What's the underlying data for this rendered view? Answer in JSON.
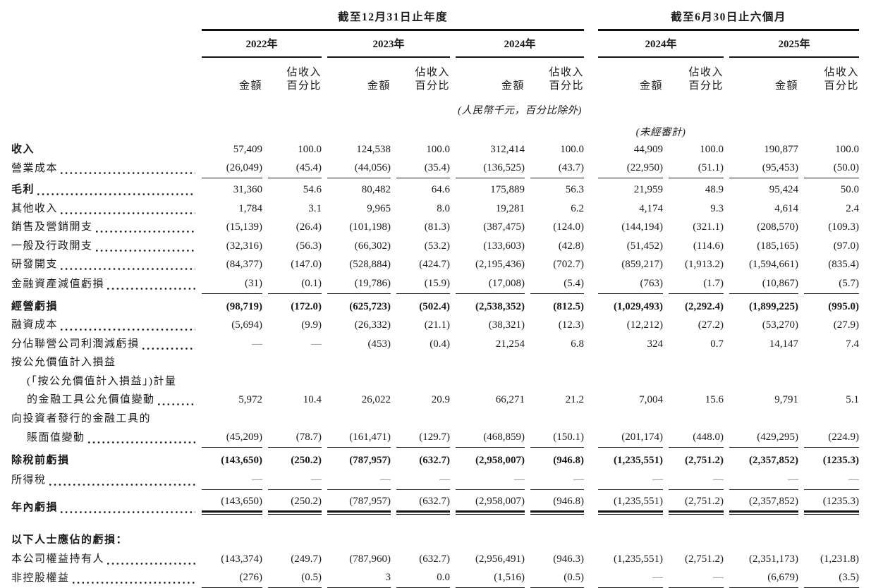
{
  "header": {
    "group_left": "截至12月31日止年度",
    "group_right": "截至6月30日止六個月",
    "years_left": [
      "2022年",
      "2023年",
      "2024年"
    ],
    "years_right": [
      "2024年",
      "2025年"
    ],
    "col_amount": "金額",
    "col_pct_line1": "佔收入",
    "col_pct_line2": "百分比",
    "note_currency": "(人民幣千元，百分比除外)",
    "note_unaudited": "(未經審計)"
  },
  "rows": [
    {
      "label": "收入",
      "bold": true,
      "leader": false,
      "values": [
        "57,409",
        "100.0",
        "124,538",
        "100.0",
        "312,414",
        "100.0",
        "44,909",
        "100.0",
        "190,877",
        "100.0"
      ]
    },
    {
      "label": "營業成本",
      "leader": true,
      "rule_after": "single",
      "values": [
        "(26,049)",
        "(45.4)",
        "(44,056)",
        "(35.4)",
        "(136,525)",
        "(43.7)",
        "(22,950)",
        "(51.1)",
        "(95,453)",
        "(50.0)"
      ]
    },
    {
      "label": "毛利",
      "bold": true,
      "leader": true,
      "gap": "s",
      "values": [
        "31,360",
        "54.6",
        "80,482",
        "64.6",
        "175,889",
        "56.3",
        "21,959",
        "48.9",
        "95,424",
        "50.0"
      ]
    },
    {
      "label": "其他收入",
      "leader": true,
      "values": [
        "1,784",
        "3.1",
        "9,965",
        "8.0",
        "19,281",
        "6.2",
        "4,174",
        "9.3",
        "4,614",
        "2.4"
      ]
    },
    {
      "label": "銷售及營銷開支",
      "leader": true,
      "values": [
        "(15,139)",
        "(26.4)",
        "(101,198)",
        "(81.3)",
        "(387,475)",
        "(124.0)",
        "(144,194)",
        "(321.1)",
        "(208,570)",
        "(109.3)"
      ]
    },
    {
      "label": "一般及行政開支",
      "leader": true,
      "values": [
        "(32,316)",
        "(56.3)",
        "(66,302)",
        "(53.2)",
        "(133,603)",
        "(42.8)",
        "(51,452)",
        "(114.6)",
        "(185,165)",
        "(97.0)"
      ]
    },
    {
      "label": "研發開支",
      "leader": true,
      "values": [
        "(84,377)",
        "(147.0)",
        "(528,884)",
        "(424.7)",
        "(2,195,436)",
        "(702.7)",
        "(859,217)",
        "(1,913.2)",
        "(1,594,661)",
        "(835.4)"
      ]
    },
    {
      "label": "金融資產減值虧損",
      "leader": true,
      "rule_after": "single",
      "values": [
        "(31)",
        "(0.1)",
        "(19,786)",
        "(15.9)",
        "(17,008)",
        "(5.4)",
        "(763)",
        "(1.7)",
        "(10,867)",
        "(5.7)"
      ]
    },
    {
      "label": "經營虧損",
      "bold": true,
      "bold_values": true,
      "gap": "m",
      "values": [
        "(98,719)",
        "(172.0)",
        "(625,723)",
        "(502.4)",
        "(2,538,352)",
        "(812.5)",
        "(1,029,493)",
        "(2,292.4)",
        "(1,899,225)",
        "(995.0)"
      ]
    },
    {
      "label": "融資成本",
      "leader": true,
      "values": [
        "(5,694)",
        "(9.9)",
        "(26,332)",
        "(21.1)",
        "(38,321)",
        "(12.3)",
        "(12,212)",
        "(27.2)",
        "(53,270)",
        "(27.9)"
      ]
    },
    {
      "label": "分佔聯營公司利潤減虧損",
      "leader": true,
      "values": [
        "—",
        "—",
        "(453)",
        "(0.4)",
        "21,254",
        "6.8",
        "324",
        "0.7",
        "14,147",
        "7.4"
      ]
    },
    {
      "label": "按公允價值計入損益",
      "values": null
    },
    {
      "label": "(「按公允價值計入損益」)計量",
      "indent": true,
      "values": null
    },
    {
      "label": "的金融工具公允價值變動",
      "indent": true,
      "leader": true,
      "values": [
        "5,972",
        "10.4",
        "26,022",
        "20.9",
        "66,271",
        "21.2",
        "7,004",
        "15.6",
        "9,791",
        "5.1"
      ]
    },
    {
      "label": "向投資者發行的金融工具的",
      "values": null
    },
    {
      "label": "賬面值變動",
      "indent": true,
      "leader": true,
      "rule_after": "single",
      "values": [
        "(45,209)",
        "(78.7)",
        "(161,471)",
        "(129.7)",
        "(468,859)",
        "(150.1)",
        "(201,174)",
        "(448.0)",
        "(429,295)",
        "(224.9)"
      ]
    },
    {
      "label": "除稅前虧損",
      "bold": true,
      "bold_values": true,
      "gap": "m",
      "values": [
        "(143,650)",
        "(250.2)",
        "(787,957)",
        "(632.7)",
        "(2,958,007)",
        "(946.8)",
        "(1,235,551)",
        "(2,751.2)",
        "(2,357,852)",
        "(1235.3)"
      ]
    },
    {
      "label": "所得稅",
      "leader": true,
      "rule_after": "single",
      "values": [
        "—",
        "—",
        "—",
        "—",
        "—",
        "—",
        "—",
        "—",
        "—",
        "—"
      ]
    },
    {
      "label": "年內虧損",
      "bold": true,
      "leader": true,
      "gap": "s",
      "rule_after": "double",
      "values": [
        "(143,650)",
        "(250.2)",
        "(787,957)",
        "(632.7)",
        "(2,958,007)",
        "(946.8)",
        "(1,235,551)",
        "(2,751.2)",
        "(2,357,852)",
        "(1235.3)"
      ]
    },
    {
      "label": "以下人士應佔的虧損：",
      "bold": true,
      "gap": "l",
      "values": null
    },
    {
      "label": "本公司權益持有人",
      "leader": true,
      "values": [
        "(143,374)",
        "(249.7)",
        "(787,960)",
        "(632.7)",
        "(2,956,491)",
        "(946.3)",
        "(1,235,551)",
        "(2,751.2)",
        "(2,351,173)",
        "(1,231.8)"
      ]
    },
    {
      "label": "非控股權益",
      "leader": true,
      "rule_after": "single",
      "values": [
        "(276)",
        "(0.5)",
        "3",
        "0.0",
        "(1,516)",
        "(0.5)",
        "—",
        "—",
        "(6,679)",
        "(3.5)"
      ]
    }
  ]
}
